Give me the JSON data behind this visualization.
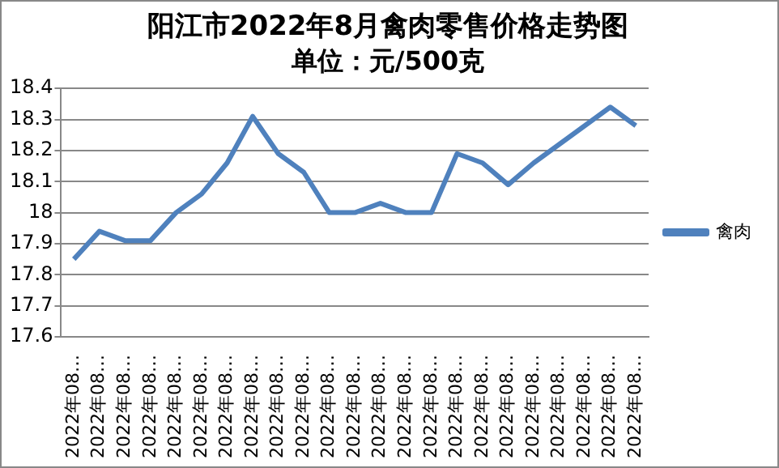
{
  "chart_data": {
    "type": "line",
    "title": "阳江市2022年8月禽肉零售价格走势图",
    "subtitle": "单位：元/500克",
    "categories": [
      "2022年08…",
      "2022年08…",
      "2022年08…",
      "2022年08…",
      "2022年08…",
      "2022年08…",
      "2022年08…",
      "2022年08…",
      "2022年08…",
      "2022年08…",
      "2022年08…",
      "2022年08…",
      "2022年08…",
      "2022年08…",
      "2022年08…",
      "2022年08…",
      "2022年08…",
      "2022年08…",
      "2022年08…",
      "2022年08…",
      "2022年08…",
      "2022年08…",
      "2022年08…"
    ],
    "series": [
      {
        "name": "禽肉",
        "color": "#4f81bd",
        "values": [
          17.85,
          17.94,
          17.91,
          17.91,
          18.0,
          18.06,
          18.16,
          18.31,
          18.19,
          18.13,
          18.0,
          18.0,
          18.03,
          18.0,
          18.0,
          18.19,
          18.16,
          18.09,
          18.16,
          18.22,
          18.28,
          18.34,
          18.28
        ]
      }
    ],
    "ylim": [
      17.6,
      18.4
    ],
    "yticks": [
      17.6,
      17.7,
      17.8,
      17.9,
      18,
      18.1,
      18.2,
      18.3,
      18.4
    ],
    "grid": "y",
    "legend": "right",
    "marker": "none",
    "line_style": "solid"
  }
}
